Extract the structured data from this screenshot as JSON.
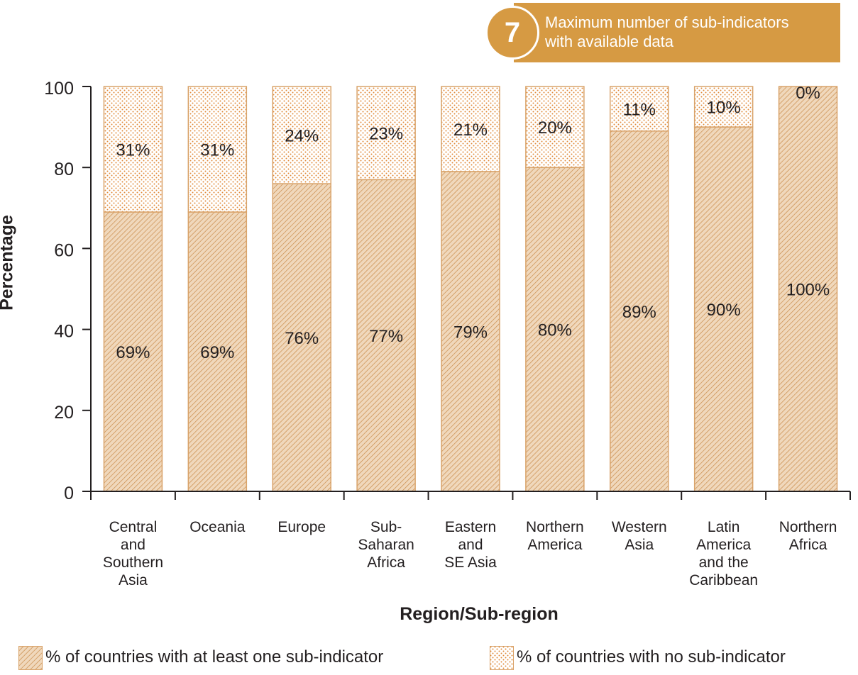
{
  "badge": {
    "number": "7",
    "text_line1": "Maximum number of sub-indicators",
    "text_line2": "with available data"
  },
  "colors": {
    "accent": "#d69a43",
    "bar_fill": "#f0d8bc",
    "bar_hatch": "#c98b4a",
    "bar_border": "#d9a36a",
    "dot_color": "#e08a3c",
    "axis": "#231f20"
  },
  "chart_data": {
    "type": "bar",
    "stacked": true,
    "title": "",
    "xlabel": "Region/Sub-region",
    "ylabel": "Percentage",
    "ylim": [
      0,
      100
    ],
    "yticks": [
      0,
      20,
      40,
      60,
      80,
      100
    ],
    "grid": false,
    "legend_position": "bottom",
    "categories": [
      [
        "Central",
        "and",
        "Southern",
        "Asia"
      ],
      [
        "Oceania"
      ],
      [
        "Europe"
      ],
      [
        "Sub-",
        "Saharan",
        "Africa"
      ],
      [
        "Eastern",
        "and",
        "SE Asia"
      ],
      [
        "Northern",
        "America"
      ],
      [
        "Western",
        "Asia"
      ],
      [
        "Latin",
        "America",
        "and the",
        "Caribbean"
      ],
      [
        "Northern",
        "Africa"
      ]
    ],
    "series": [
      {
        "name": "% of countries with at least one sub-indicator",
        "pattern": "hatch",
        "values": [
          69,
          69,
          76,
          77,
          79,
          80,
          89,
          90,
          100
        ],
        "labels": [
          "69%",
          "69%",
          "76%",
          "77%",
          "79%",
          "80%",
          "89%",
          "90%",
          "100%"
        ]
      },
      {
        "name": "% of countries with no sub-indicator",
        "pattern": "dots",
        "values": [
          31,
          31,
          24,
          23,
          21,
          20,
          11,
          10,
          0
        ],
        "labels": [
          "31%",
          "31%",
          "24%",
          "23%",
          "21%",
          "20%",
          "11%",
          "10%",
          "0%"
        ]
      }
    ]
  }
}
